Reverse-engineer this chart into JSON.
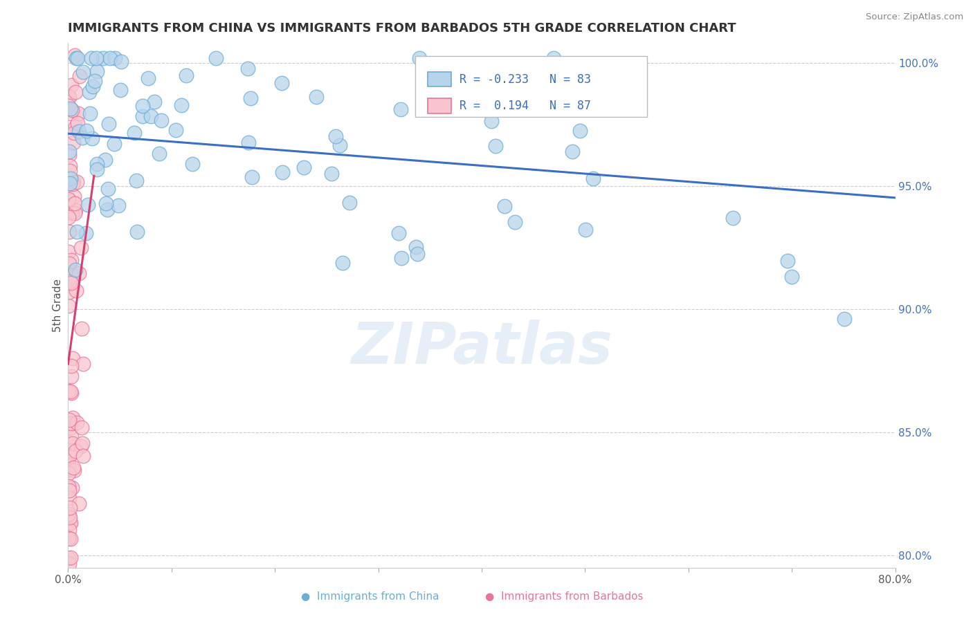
{
  "title": "IMMIGRANTS FROM CHINA VS IMMIGRANTS FROM BARBADOS 5TH GRADE CORRELATION CHART",
  "source": "Source: ZipAtlas.com",
  "ylabel": "5th Grade",
  "xlim": [
    0.0,
    0.8
  ],
  "ylim": [
    0.795,
    1.008
  ],
  "yticks": [
    0.8,
    0.85,
    0.9,
    0.95,
    1.0
  ],
  "ytick_labels": [
    "80.0%",
    "85.0%",
    "90.0%",
    "95.0%",
    "100.0%"
  ],
  "xticks": [
    0.0,
    0.1,
    0.2,
    0.3,
    0.4,
    0.5,
    0.6,
    0.7,
    0.8
  ],
  "xtick_labels": [
    "0.0%",
    "",
    "",
    "",
    "",
    "",
    "",
    "",
    "80.0%"
  ],
  "china_color": "#b8d4ea",
  "china_edge_color": "#6baed6",
  "barbados_color": "#f9c6d0",
  "barbados_edge_color": "#e8759a",
  "china_line_color": "#3a6fc4",
  "barbados_line_color": "#d44070",
  "china_R": -0.233,
  "china_N": 83,
  "barbados_R": 0.194,
  "barbados_N": 87,
  "background_color": "#ffffff",
  "grid_color": "#cccccc",
  "title_color": "#333333",
  "watermark": "ZIPatlas",
  "legend_R_color": "#3a6fc4",
  "legend_china_fill": "#b8d4ea",
  "legend_china_edge": "#6baed6",
  "legend_barbados_fill": "#f9c6d0",
  "legend_barbados_edge": "#e8759a"
}
